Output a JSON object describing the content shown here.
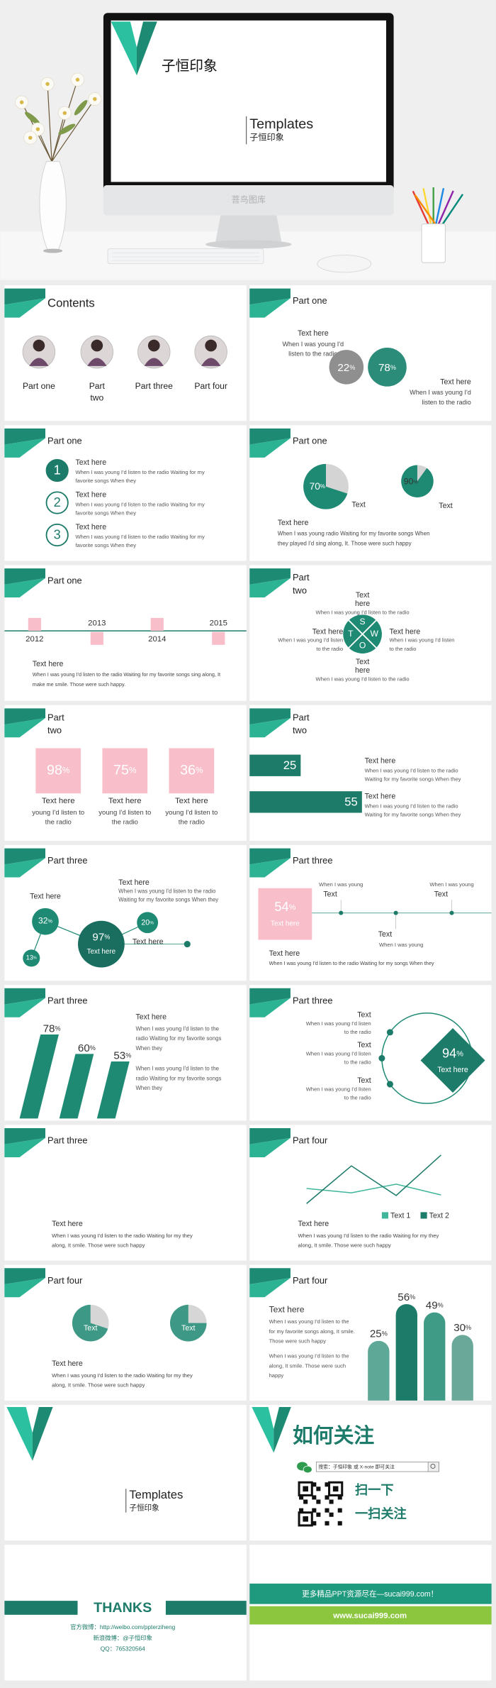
{
  "hero": {
    "title": "子恒印象",
    "subtitle_en": "Templates",
    "subtitle_cn": "子恒印象",
    "stand_text": "菩鸟图库"
  },
  "percent": "%",
  "slides": [
    {
      "title": "Contents",
      "items": [
        [
          "Part one"
        ],
        [
          "Part",
          "two"
        ],
        [
          "Part three"
        ],
        [
          "Part four"
        ]
      ]
    },
    {
      "title": "Part one",
      "text_a": "Text here",
      "desc_a": [
        "When I was young I'd",
        "listen to the radio"
      ],
      "values": [
        22,
        78
      ],
      "text_b": "Text here",
      "desc_b": [
        "When I was young I'd",
        "listen to the radio"
      ]
    },
    {
      "title": "Part one",
      "items": [
        {
          "number": 1,
          "title": "Text here",
          "desc": [
            "When I was young I'd listen to the radio Waiting for my",
            "favorite songs When they"
          ]
        },
        {
          "number": 2,
          "title": "Text here",
          "desc": [
            "When I was young I'd listen to the radio Waiting for my",
            "favorite songs When they"
          ]
        },
        {
          "number": 3,
          "title": "Text here",
          "desc": [
            "When I was young I'd listen to the radio Waiting for my",
            "favorite songs When they"
          ]
        }
      ]
    },
    {
      "title": "Part one",
      "values": [
        70,
        90
      ],
      "value_text": [
        "Text",
        "Text"
      ],
      "text": "Text here",
      "desc": [
        "When I was young radio Waiting for my favorite songs When",
        "they played I'd sing along, It. Those were such happy"
      ]
    },
    {
      "title": "Part one",
      "years": [
        2012,
        2013,
        2014,
        2015
      ],
      "text": "Text here",
      "desc": [
        "When I was young I'd listen to the radio Waiting for my favorite songs sing along, It",
        "make me smile. Those were such happy."
      ]
    },
    {
      "title": [
        "Part",
        "two"
      ],
      "letters": [
        "S",
        "W",
        "O",
        "T"
      ],
      "items": [
        {
          "title": [
            "Text",
            "here"
          ],
          "desc": [
            "When I was young I'd listen to the radio"
          ]
        },
        {
          "title": [
            "Text here"
          ],
          "desc": [
            "When I was young I'd listen",
            "to the radio"
          ]
        },
        {
          "title": [
            "Text here"
          ],
          "desc": [
            "When I was young I'd listen",
            "to the radio"
          ]
        },
        {
          "title": [
            "Text",
            "here"
          ],
          "desc": [
            "When I was young I'd listen to the radio"
          ]
        }
      ]
    },
    {
      "title": [
        "Part",
        "two"
      ],
      "values": [
        98,
        75,
        36
      ],
      "items": [
        {
          "title": "Text here",
          "desc": [
            "young I'd listen to",
            "the radio"
          ]
        },
        {
          "title": "Text here",
          "desc": [
            "young I'd listen to",
            "the radio"
          ]
        },
        {
          "title": "Text here",
          "desc": [
            "young I'd listen to",
            "the radio"
          ]
        }
      ]
    },
    {
      "title": [
        "Part",
        "two"
      ],
      "values": [
        25,
        55
      ],
      "items": [
        {
          "title": "Text here",
          "desc": [
            "When I was young I'd listen to the radio",
            "Waiting for my favorite songs When they"
          ]
        },
        {
          "title": "Text here",
          "desc": [
            "When I was young I'd listen to the radio",
            "Waiting for my favorite songs When they"
          ]
        }
      ]
    },
    {
      "title": "Part three",
      "values": [
        32,
        97,
        20,
        13
      ],
      "inner": "Text here",
      "items": [
        {
          "title": "Text here"
        },
        {
          "title": "Text here",
          "desc": [
            "When I was young I'd listen to the radio",
            "Waiting for my favorite songs When they"
          ]
        },
        {
          "title": "Text here"
        }
      ]
    },
    {
      "title": "Part three",
      "value": 54,
      "value_text": "Text here",
      "points": [
        {
          "note": "When I was young",
          "title": "Text"
        },
        {
          "note": "When I was young",
          "title": "Text"
        },
        {
          "note": "When I was young",
          "title": "Text"
        }
      ],
      "text": "Text here",
      "desc": [
        "When I was young I'd listen to the radio Waiting for my songs When they"
      ]
    },
    {
      "title": "Part three",
      "values": [
        78,
        60,
        53
      ],
      "text": "Text here",
      "paragraphs": [
        [
          "When I was young I'd listen to the",
          "radio Waiting for my favorite songs",
          "When they"
        ],
        [
          "When I was young I'd listen to the",
          "radio Waiting for my favorite songs",
          "When they"
        ]
      ]
    },
    {
      "title": "Part three",
      "items": [
        {
          "title": "Text",
          "desc": [
            "When I was young I'd listen",
            "to the radio"
          ]
        },
        {
          "title": "Text",
          "desc": [
            "When I was young I'd listen",
            "to the radio"
          ]
        },
        {
          "title": "Text",
          "desc": [
            "When I was young I'd listen",
            "to the radio"
          ]
        }
      ],
      "value": 94,
      "value_text": "Text here"
    },
    {
      "title": "Part three",
      "text": "Text here",
      "desc": [
        "When I was young I'd listen to the radio Waiting for my they",
        "along, It smile. Those were such happy"
      ]
    },
    {
      "title": "Part four",
      "chart": {
        "type": "line",
        "categories": [
          null,
          null,
          null,
          null
        ],
        "ylim": [
          0,
          100
        ],
        "series": [
          {
            "name": "Text 1",
            "color": "#3fb59b",
            "values": [
              38,
              30,
              46,
              26
            ]
          },
          {
            "name": "Text 2",
            "color": "#1d7b69",
            "values": [
              10,
              80,
              25,
              100
            ]
          }
        ]
      },
      "text": "Text here",
      "desc": [
        "When I was young I'd listen to the radio Waiting for my they",
        "along, It smile. Those were such happy"
      ]
    },
    {
      "title": "Part four",
      "values": [
        70,
        75
      ],
      "value_text": [
        "Text",
        "Text"
      ],
      "text": "Text here",
      "desc": [
        "When I was young I'd listen to the radio Waiting for my they",
        "along, It smile. Those were such happy"
      ]
    },
    {
      "title": "Part four",
      "text": "Text here",
      "paragraphs": [
        [
          "When I was young I'd listen to the",
          "for my favorite songs along, It smile.",
          "Those were such happy"
        ],
        [
          "When I was young I'd listen to the",
          "along, It smile. Those were such",
          "happy"
        ]
      ],
      "values": [
        25,
        56,
        49,
        30
      ]
    },
    {
      "subtitle_en": "Templates",
      "subtitle_cn": "子恒印象"
    },
    {
      "title": "如何关注",
      "search": "搜索：子恒印象 或 X-note 即可关注",
      "lines": [
        "扫一下",
        "一扫关注"
      ]
    },
    {
      "title": "THANKS",
      "contacts": [
        "官方微博：http://weibo.com/ppterziheng",
        "新浪微博：@子恒印象",
        "QQ：765320564"
      ]
    },
    {
      "banner": "更多精品PPT资源尽在—sucai999.com！",
      "url": "www.sucai999.com"
    }
  ]
}
